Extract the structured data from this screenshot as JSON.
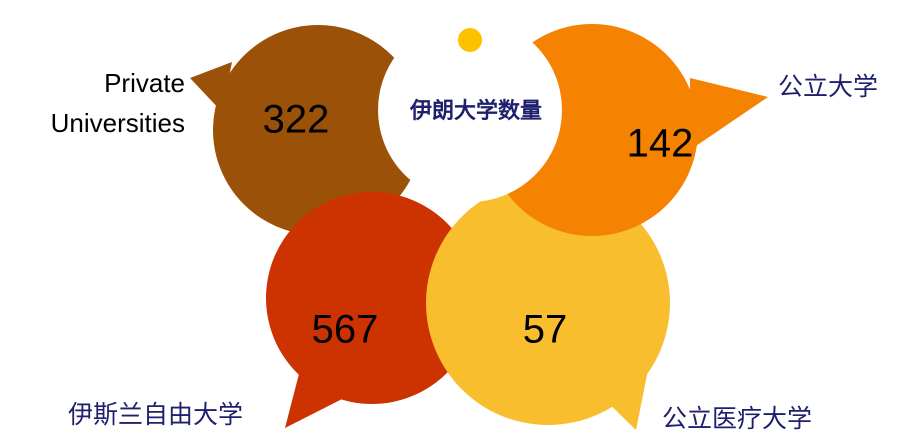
{
  "title": "伊朗大学数量",
  "items": [
    {
      "label": "Private Universities",
      "value": 322,
      "color": "#9b5208"
    },
    {
      "label": "公立大学",
      "value": 142,
      "color": "#f58200"
    },
    {
      "label": "伊斯兰自由大学",
      "value": 567,
      "color": "#cc3300"
    },
    {
      "label": "公立医疗大学",
      "value": 57,
      "color": "#f8be2e"
    }
  ]
}
